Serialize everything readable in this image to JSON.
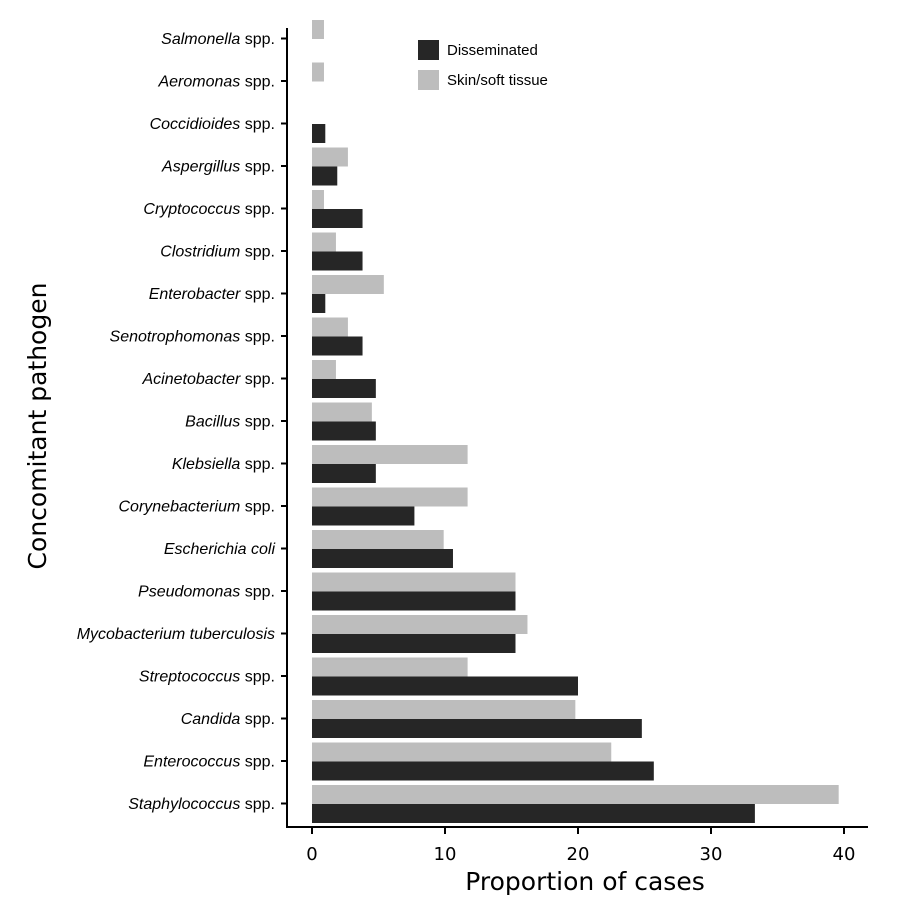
{
  "chart_data": {
    "type": "bar",
    "orientation": "horizontal",
    "xlabel": "Proportion of cases",
    "ylabel": "Concomitant pathogen",
    "xlim": [
      0,
      40
    ],
    "xticks": [
      0,
      10,
      20,
      30,
      40
    ],
    "legend_position": "top-center",
    "categories": [
      {
        "label": "Salmonella spp.",
        "italic": "Salmonella",
        "plain": " spp."
      },
      {
        "label": "Aeromonas spp.",
        "italic": "Aeromonas",
        "plain": " spp."
      },
      {
        "label": "Coccidioides spp.",
        "italic": "Coccidioides",
        "plain": " spp."
      },
      {
        "label": "Aspergillus spp.",
        "italic": "Aspergillus",
        "plain": " spp."
      },
      {
        "label": "Cryptococcus spp.",
        "italic": "Cryptococcus",
        "plain": " spp."
      },
      {
        "label": "Clostridium spp.",
        "italic": "Clostridium",
        "plain": " spp."
      },
      {
        "label": "Enterobacter spp.",
        "italic": "Enterobacter",
        "plain": " spp."
      },
      {
        "label": "Senotrophomonas spp.",
        "italic": "Senotrophomonas",
        "plain": " spp."
      },
      {
        "label": "Acinetobacter spp.",
        "italic": "Acinetobacter",
        "plain": " spp."
      },
      {
        "label": "Bacillus spp.",
        "italic": "Bacillus",
        "plain": " spp."
      },
      {
        "label": "Klebsiella spp.",
        "italic": "Klebsiella",
        "plain": " spp."
      },
      {
        "label": "Corynebacterium spp.",
        "italic": "Corynebacterium",
        "plain": " spp."
      },
      {
        "label": "Escherichia coli",
        "italic": "Escherichia coli",
        "plain": ""
      },
      {
        "label": "Pseudomonas spp.",
        "italic": "Pseudomonas",
        "plain": " spp."
      },
      {
        "label": "Mycobacterium tuberculosis",
        "italic": "Mycobacterium tuberculosis",
        "plain": ""
      },
      {
        "label": "Streptococcus spp.",
        "italic": "Streptococcus",
        "plain": " spp."
      },
      {
        "label": "Candida spp.",
        "italic": "Candida",
        "plain": " spp."
      },
      {
        "label": "Enterococcus spp.",
        "italic": "Enterococcus",
        "plain": " spp."
      },
      {
        "label": "Staphylococcus spp.",
        "italic": "Staphylococcus",
        "plain": " spp."
      }
    ],
    "series": [
      {
        "name": "Skin/soft tissue",
        "color": "#bdbdbd",
        "values": [
          0.9,
          0.9,
          0,
          2.7,
          0.9,
          1.8,
          5.4,
          2.7,
          1.8,
          4.5,
          11.7,
          11.7,
          9.9,
          15.3,
          16.2,
          11.7,
          19.8,
          22.5,
          39.6
        ]
      },
      {
        "name": "Disseminated",
        "color": "#262626",
        "values": [
          0,
          0,
          1.0,
          1.9,
          3.8,
          3.8,
          1.0,
          3.8,
          4.8,
          4.8,
          4.8,
          7.7,
          10.6,
          15.3,
          15.3,
          20.0,
          24.8,
          25.7,
          33.3
        ]
      }
    ],
    "legend": [
      {
        "name": "Disseminated",
        "color": "#262626"
      },
      {
        "name": "Skin/soft tissue",
        "color": "#bdbdbd"
      }
    ]
  }
}
